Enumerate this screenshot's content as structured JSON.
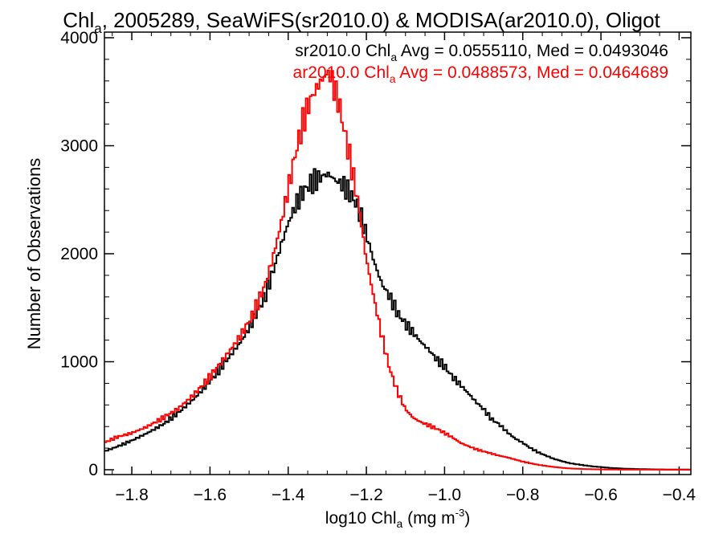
{
  "chart_data": {
    "type": "line",
    "title": {
      "prefix": "Chl",
      "sub": "a",
      "suffix": ", 2005289, SeaWiFS(sr2010.0) & MODISA(ar2010.0), Oligot"
    },
    "xlabel": {
      "prefix": "log10 Chl",
      "sub": "a",
      "unit_pre": " (mg m",
      "unit_sup": "-3",
      "unit_post": ")"
    },
    "ylabel": "Number of Observations",
    "xlim": [
      -1.87,
      -0.37
    ],
    "ylim": [
      0,
      4000
    ],
    "x_ticks": [
      -1.8,
      -1.6,
      -1.4,
      -1.2,
      -1.0,
      -0.8,
      -0.6,
      -0.4
    ],
    "x_tick_labels": [
      "−1.8",
      "−1.6",
      "−1.4",
      "−1.2",
      "−1.0",
      "−0.8",
      "−0.6",
      "−0.4"
    ],
    "y_ticks": [
      0,
      1000,
      2000,
      3000,
      4000
    ],
    "y_tick_labels": [
      "0",
      "1000",
      "2000",
      "3000",
      "4000"
    ],
    "legend_placement": "top-right",
    "series": [
      {
        "name": "sr2010.0",
        "color": "#000000",
        "label": {
          "prefix": "sr2010.0 Chl",
          "sub": "a",
          "suffix": " Avg = 0.0555110, Med = 0.0493046"
        },
        "points": [
          [
            -1.87,
            170
          ],
          [
            -1.84,
            210
          ],
          [
            -1.8,
            270
          ],
          [
            -1.76,
            340
          ],
          [
            -1.72,
            420
          ],
          [
            -1.68,
            530
          ],
          [
            -1.64,
            660
          ],
          [
            -1.6,
            820
          ],
          [
            -1.56,
            1000
          ],
          [
            -1.52,
            1190
          ],
          [
            -1.49,
            1380
          ],
          [
            -1.46,
            1600
          ],
          [
            -1.44,
            1820
          ],
          [
            -1.42,
            2060
          ],
          [
            -1.4,
            2280
          ],
          [
            -1.38,
            2460
          ],
          [
            -1.36,
            2580
          ],
          [
            -1.34,
            2660
          ],
          [
            -1.32,
            2700
          ],
          [
            -1.3,
            2740
          ],
          [
            -1.29,
            2720
          ],
          [
            -1.28,
            2680
          ],
          [
            -1.27,
            2660
          ],
          [
            -1.26,
            2640
          ],
          [
            -1.24,
            2550
          ],
          [
            -1.22,
            2420
          ],
          [
            -1.2,
            2180
          ],
          [
            -1.18,
            1920
          ],
          [
            -1.16,
            1720
          ],
          [
            -1.14,
            1600
          ],
          [
            -1.12,
            1450
          ],
          [
            -1.1,
            1350
          ],
          [
            -1.08,
            1270
          ],
          [
            -1.06,
            1180
          ],
          [
            -1.04,
            1110
          ],
          [
            -1.02,
            1020
          ],
          [
            -1.0,
            960
          ],
          [
            -0.98,
            860
          ],
          [
            -0.96,
            790
          ],
          [
            -0.94,
            710
          ],
          [
            -0.92,
            630
          ],
          [
            -0.9,
            560
          ],
          [
            -0.88,
            470
          ],
          [
            -0.86,
            420
          ],
          [
            -0.84,
            350
          ],
          [
            -0.82,
            290
          ],
          [
            -0.8,
            250
          ],
          [
            -0.78,
            200
          ],
          [
            -0.76,
            160
          ],
          [
            -0.74,
            130
          ],
          [
            -0.72,
            100
          ],
          [
            -0.7,
            80
          ],
          [
            -0.68,
            60
          ],
          [
            -0.66,
            50
          ],
          [
            -0.64,
            40
          ],
          [
            -0.62,
            30
          ],
          [
            -0.6,
            25
          ],
          [
            -0.58,
            18
          ],
          [
            -0.56,
            14
          ],
          [
            -0.54,
            10
          ],
          [
            -0.5,
            6
          ],
          [
            -0.46,
            3
          ],
          [
            -0.42,
            2
          ],
          [
            -0.37,
            1
          ]
        ]
      },
      {
        "name": "ar2010.0",
        "color": "#ff0000",
        "label": {
          "prefix": "ar2010.0 Chl",
          "sub": "a",
          "suffix": " Avg = 0.0488573, Med = 0.0464689"
        },
        "points": [
          [
            -1.87,
            250
          ],
          [
            -1.84,
            300
          ],
          [
            -1.8,
            340
          ],
          [
            -1.76,
            400
          ],
          [
            -1.72,
            480
          ],
          [
            -1.68,
            570
          ],
          [
            -1.64,
            700
          ],
          [
            -1.6,
            860
          ],
          [
            -1.56,
            1050
          ],
          [
            -1.52,
            1250
          ],
          [
            -1.49,
            1440
          ],
          [
            -1.46,
            1700
          ],
          [
            -1.44,
            1950
          ],
          [
            -1.42,
            2250
          ],
          [
            -1.4,
            2600
          ],
          [
            -1.38,
            2950
          ],
          [
            -1.36,
            3250
          ],
          [
            -1.34,
            3450
          ],
          [
            -1.32,
            3580
          ],
          [
            -1.31,
            3620
          ],
          [
            -1.3,
            3680
          ],
          [
            -1.29,
            3640
          ],
          [
            -1.28,
            3500
          ],
          [
            -1.27,
            3400
          ],
          [
            -1.26,
            3200
          ],
          [
            -1.24,
            2850
          ],
          [
            -1.22,
            2450
          ],
          [
            -1.2,
            1950
          ],
          [
            -1.18,
            1580
          ],
          [
            -1.16,
            1230
          ],
          [
            -1.14,
            930
          ],
          [
            -1.12,
            720
          ],
          [
            -1.1,
            560
          ],
          [
            -1.08,
            480
          ],
          [
            -1.06,
            440
          ],
          [
            -1.04,
            410
          ],
          [
            -1.02,
            380
          ],
          [
            -1.0,
            340
          ],
          [
            -0.98,
            300
          ],
          [
            -0.96,
            250
          ],
          [
            -0.94,
            220
          ],
          [
            -0.92,
            190
          ],
          [
            -0.9,
            170
          ],
          [
            -0.88,
            150
          ],
          [
            -0.86,
            130
          ],
          [
            -0.84,
            115
          ],
          [
            -0.82,
            95
          ],
          [
            -0.8,
            75
          ],
          [
            -0.78,
            60
          ],
          [
            -0.76,
            45
          ],
          [
            -0.74,
            35
          ],
          [
            -0.72,
            25
          ],
          [
            -0.7,
            18
          ],
          [
            -0.68,
            12
          ],
          [
            -0.66,
            9
          ],
          [
            -0.64,
            6
          ],
          [
            -0.6,
            3
          ],
          [
            -0.55,
            1
          ],
          [
            -0.37,
            0
          ]
        ]
      }
    ]
  }
}
